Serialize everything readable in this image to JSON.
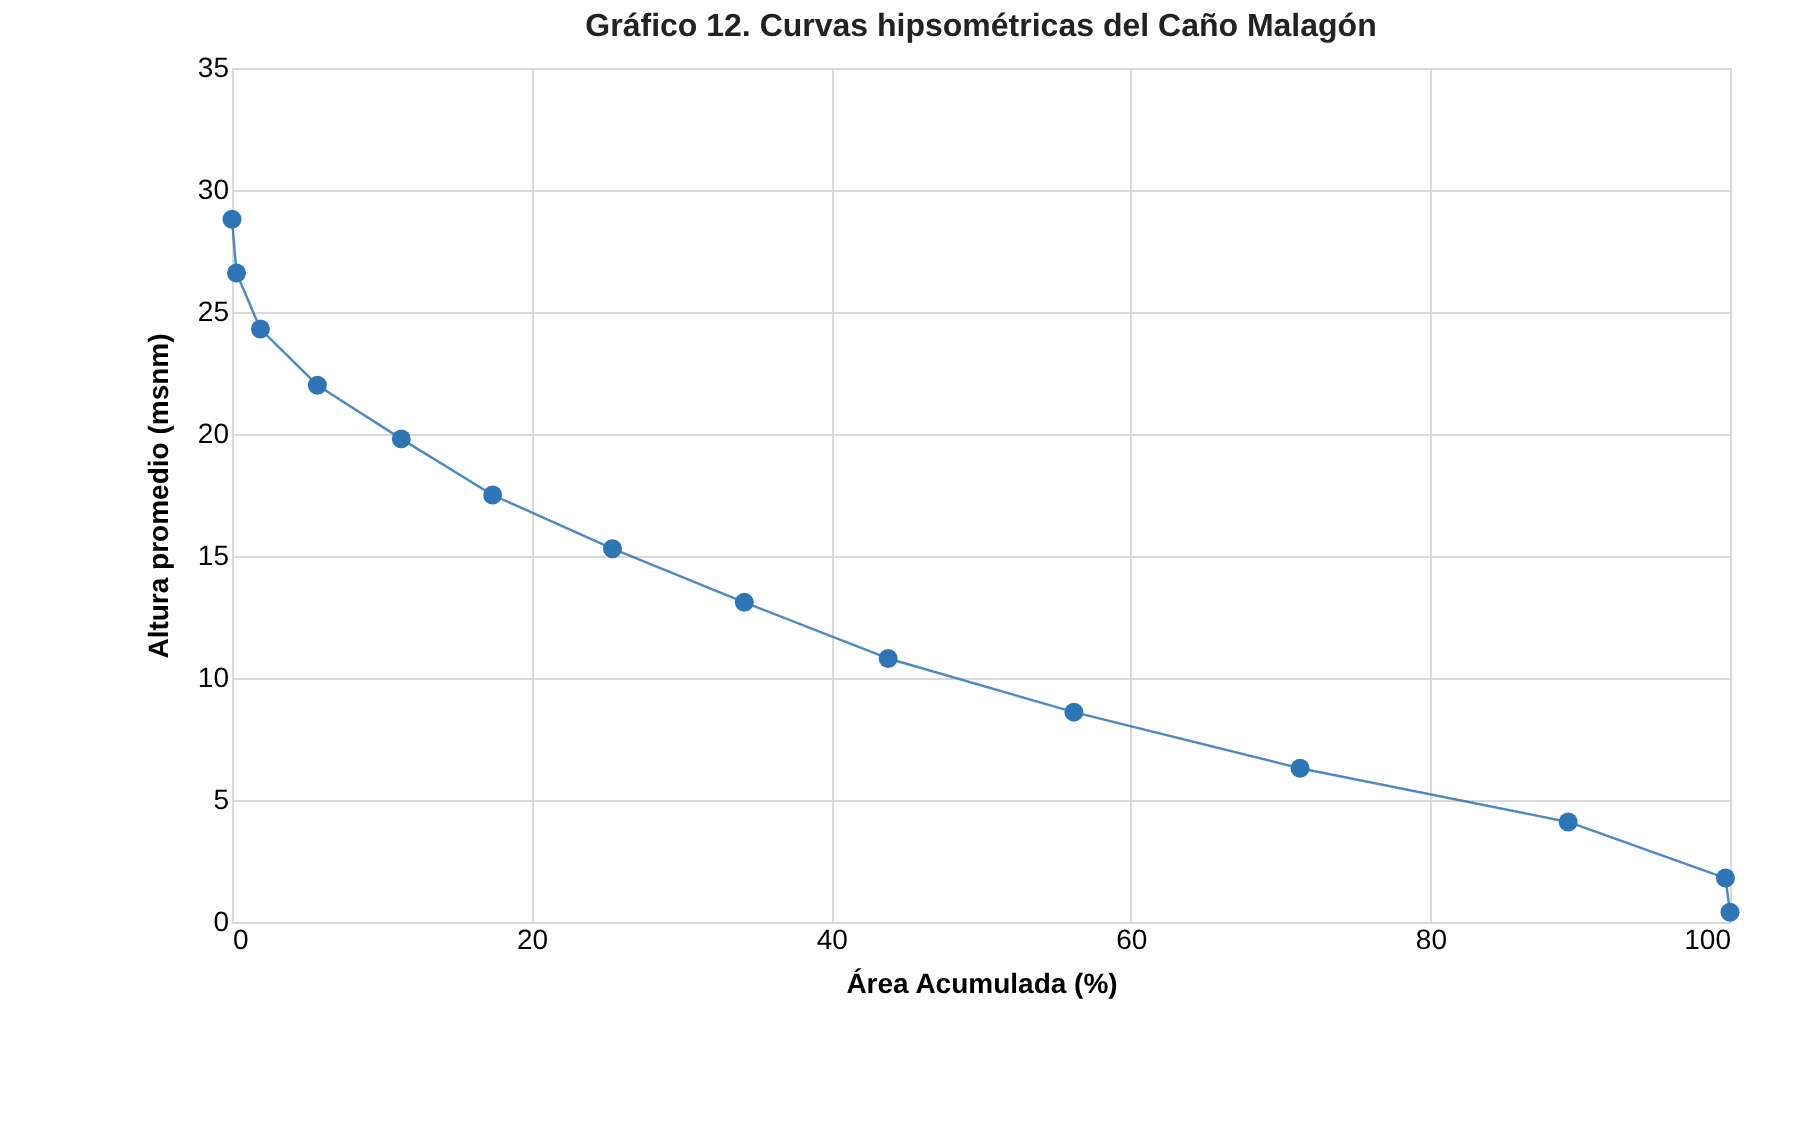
{
  "chart_data": {
    "type": "line",
    "title": "Gráfico 12. Curvas hipsométricas del Caño Malagón",
    "xlabel": "Área Acumulada (%)",
    "ylabel": "Altura promedio (msnm)",
    "x": [
      0,
      0.3,
      1.9,
      5.7,
      11.3,
      17.4,
      25.4,
      34.2,
      43.8,
      56.2,
      71.3,
      89.2,
      99.7,
      100
    ],
    "series": [
      {
        "color": "#2e75b6",
        "values": [
          28.8,
          26.6,
          24.3,
          22.0,
          19.8,
          17.5,
          15.3,
          13.1,
          10.8,
          8.6,
          6.3,
          4.1,
          1.8,
          0.4
        ]
      }
    ],
    "xlim": [
      0,
      100
    ],
    "xticks": [
      0,
      20,
      40,
      60,
      80,
      100
    ],
    "ylim": [
      0,
      35
    ],
    "yticks": [
      0,
      5,
      10,
      15,
      20,
      25,
      30,
      35
    ],
    "grid": true,
    "marker": "circle",
    "line_style": "solid"
  }
}
